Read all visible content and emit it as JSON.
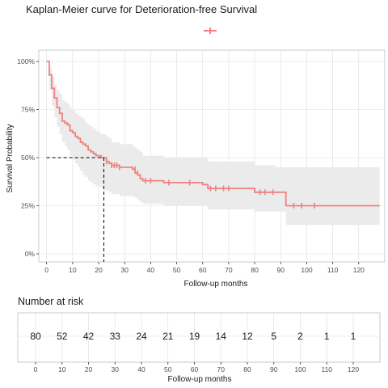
{
  "chart_data": [
    {
      "type": "line",
      "title": "Kaplan-Meier curve for Deterioration-free Survival",
      "xlabel": "Follow-up months",
      "ylabel": "Survival Probability",
      "xlim": [
        -3,
        130
      ],
      "ylim": [
        0,
        1
      ],
      "x_ticks": [
        0,
        10,
        20,
        30,
        40,
        50,
        60,
        70,
        80,
        90,
        100,
        110,
        120
      ],
      "y_ticks": [
        0,
        0.25,
        0.5,
        0.75,
        1.0
      ],
      "y_tick_labels": [
        "0%",
        "25%",
        "50%",
        "75%",
        "100%"
      ],
      "grid": true,
      "legend_position": "top",
      "colors": {
        "curve": "#f08080",
        "ci": "#ebebeb",
        "grid": "#dddddd",
        "axis": "#333333",
        "reference": "#000000"
      },
      "median_survival": {
        "x": 22,
        "y": 0.5
      },
      "series": [
        {
          "x": [
            0,
            1,
            2,
            3,
            4,
            5,
            6,
            7,
            8,
            9,
            10,
            11,
            12,
            13,
            14,
            15,
            16,
            17,
            18,
            19,
            20,
            21,
            22,
            23,
            24,
            25,
            26,
            27,
            28,
            33,
            34,
            35,
            36,
            37,
            40,
            45,
            50,
            55,
            60,
            62,
            65,
            70,
            75,
            80,
            85,
            88,
            90,
            92,
            95,
            100,
            110,
            120,
            128
          ],
          "y": [
            1.0,
            0.93,
            0.86,
            0.81,
            0.76,
            0.73,
            0.69,
            0.68,
            0.67,
            0.64,
            0.63,
            0.61,
            0.6,
            0.58,
            0.57,
            0.56,
            0.54,
            0.53,
            0.52,
            0.51,
            0.51,
            0.5,
            0.5,
            0.48,
            0.47,
            0.46,
            0.46,
            0.46,
            0.45,
            0.44,
            0.42,
            0.41,
            0.39,
            0.38,
            0.38,
            0.37,
            0.37,
            0.37,
            0.36,
            0.34,
            0.34,
            0.34,
            0.34,
            0.32,
            0.32,
            0.32,
            0.32,
            0.25,
            0.25,
            0.25,
            0.25,
            0.25,
            0.25
          ],
          "ci_lower": [
            1.0,
            0.85,
            0.77,
            0.71,
            0.66,
            0.62,
            0.58,
            0.56,
            0.54,
            0.51,
            0.49,
            0.47,
            0.45,
            0.43,
            0.41,
            0.4,
            0.38,
            0.37,
            0.36,
            0.35,
            0.35,
            0.34,
            0.33,
            0.33,
            0.32,
            0.31,
            0.31,
            0.31,
            0.3,
            0.3,
            0.29,
            0.28,
            0.27,
            0.26,
            0.26,
            0.25,
            0.25,
            0.25,
            0.25,
            0.23,
            0.23,
            0.23,
            0.23,
            0.22,
            0.22,
            0.22,
            0.22,
            0.15,
            0.15,
            0.15,
            0.15,
            0.15,
            0.15
          ],
          "ci_upper": [
            1.0,
            0.97,
            0.92,
            0.88,
            0.85,
            0.83,
            0.8,
            0.79,
            0.78,
            0.76,
            0.75,
            0.73,
            0.72,
            0.71,
            0.7,
            0.68,
            0.67,
            0.66,
            0.65,
            0.64,
            0.63,
            0.62,
            0.62,
            0.61,
            0.6,
            0.58,
            0.58,
            0.58,
            0.57,
            0.56,
            0.55,
            0.54,
            0.53,
            0.51,
            0.51,
            0.5,
            0.5,
            0.5,
            0.5,
            0.48,
            0.48,
            0.48,
            0.48,
            0.46,
            0.46,
            0.45,
            0.45,
            0.45,
            0.45,
            0.45,
            0.45,
            0.45,
            0.45
          ],
          "censored": [
            [
              23,
              0.48
            ],
            [
              25,
              0.46
            ],
            [
              26,
              0.46
            ],
            [
              27,
              0.46
            ],
            [
              28,
              0.45
            ],
            [
              34,
              0.44
            ],
            [
              35,
              0.42
            ],
            [
              38,
              0.38
            ],
            [
              40,
              0.38
            ],
            [
              47,
              0.37
            ],
            [
              55,
              0.37
            ],
            [
              63,
              0.34
            ],
            [
              65,
              0.34
            ],
            [
              68,
              0.34
            ],
            [
              70,
              0.34
            ],
            [
              82,
              0.32
            ],
            [
              84,
              0.32
            ],
            [
              87,
              0.32
            ],
            [
              95,
              0.25
            ],
            [
              98,
              0.25
            ],
            [
              103,
              0.25
            ]
          ]
        }
      ]
    },
    {
      "type": "table",
      "title": "Number at risk",
      "xlabel": "Follow-up months",
      "x": [
        0,
        10,
        20,
        30,
        40,
        50,
        60,
        70,
        80,
        90,
        100,
        110,
        120
      ],
      "x_ticks": [
        0,
        10,
        20,
        30,
        40,
        50,
        60,
        70,
        80,
        90,
        100,
        110,
        120
      ],
      "values": [
        80,
        52,
        42,
        33,
        24,
        21,
        19,
        14,
        12,
        5,
        2,
        1,
        1
      ]
    }
  ]
}
